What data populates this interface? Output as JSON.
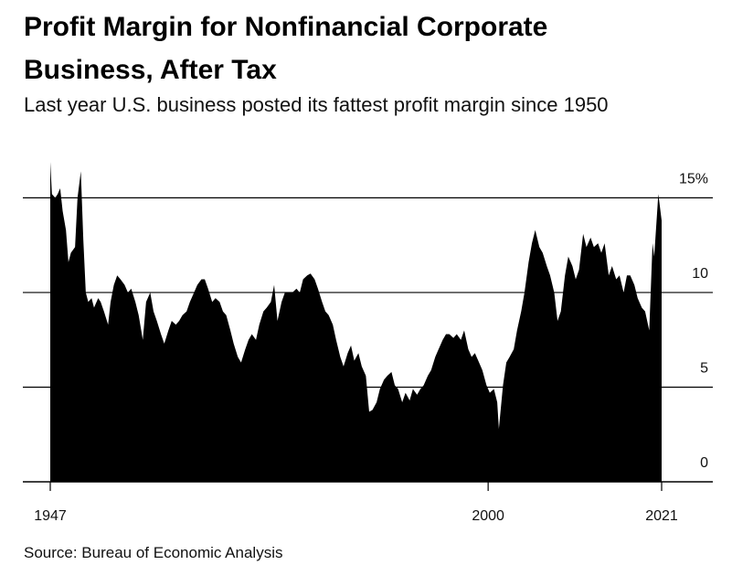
{
  "chart_data": {
    "type": "area",
    "title": "Profit Margin for Nonfinancial Corporate Business, After Tax",
    "subtitle": "Last year U.S. business posted its fattest profit margin since 1950",
    "source": "Source: Bureau of Economic Analysis",
    "color": "#000000",
    "xlim": [
      1947,
      2021
    ],
    "xticks": [
      1947,
      2000,
      2021
    ],
    "ylim": [
      0,
      17
    ],
    "yticks": [
      0,
      5,
      10,
      {
        "value": 15,
        "label": "15%"
      }
    ],
    "grid": true,
    "x": [
      1947.0,
      1947.2,
      1947.6,
      1947.9,
      1948.2,
      1948.5,
      1948.9,
      1949.2,
      1949.5,
      1950.0,
      1950.3,
      1950.7,
      1951.0,
      1951.3,
      1951.6,
      1952.0,
      1952.3,
      1952.8,
      1953.1,
      1953.5,
      1954.0,
      1954.3,
      1954.7,
      1955.1,
      1955.5,
      1956.0,
      1956.4,
      1956.8,
      1957.3,
      1957.7,
      1958.2,
      1958.6,
      1959.1,
      1959.5,
      1959.9,
      1960.4,
      1960.8,
      1961.3,
      1961.7,
      1962.2,
      1962.6,
      1963.0,
      1963.5,
      1963.9,
      1964.4,
      1964.8,
      1965.3,
      1965.7,
      1966.1,
      1966.6,
      1967.0,
      1967.5,
      1967.9,
      1968.3,
      1968.8,
      1969.2,
      1969.7,
      1970.1,
      1970.6,
      1971.0,
      1971.4,
      1971.9,
      1972.3,
      1972.8,
      1973.2,
      1973.7,
      1974.1,
      1974.5,
      1975.0,
      1975.4,
      1975.9,
      1976.3,
      1976.8,
      1977.2,
      1977.6,
      1978.1,
      1978.5,
      1979.0,
      1979.4,
      1979.9,
      1980.3,
      1980.7,
      1981.2,
      1981.6,
      1982.1,
      1982.5,
      1983.0,
      1983.4,
      1983.8,
      1984.3,
      1984.7,
      1985.2,
      1985.6,
      1986.0,
      1986.5,
      1986.9,
      1987.4,
      1987.8,
      1988.3,
      1988.7,
      1989.1,
      1989.6,
      1990.0,
      1990.5,
      1990.9,
      1991.4,
      1991.8,
      1992.2,
      1992.7,
      1993.1,
      1993.6,
      1994.0,
      1994.5,
      1994.9,
      1995.3,
      1995.8,
      1996.2,
      1996.7,
      1997.1,
      1997.6,
      1998.0,
      1998.4,
      1998.9,
      1999.3,
      1999.8,
      2000.2,
      2000.7,
      2001.1,
      2001.3,
      2001.8,
      2002.2,
      2002.6,
      2003.1,
      2003.5,
      2004.0,
      2004.4,
      2004.9,
      2005.3,
      2005.7,
      2006.2,
      2006.6,
      2007.1,
      2007.5,
      2008.0,
      2008.4,
      2008.8,
      2009.3,
      2009.7,
      2010.2,
      2010.6,
      2011.0,
      2011.5,
      2011.9,
      2012.4,
      2012.8,
      2013.3,
      2013.7,
      2014.1,
      2014.6,
      2015.0,
      2015.5,
      2015.9,
      2016.4,
      2016.8,
      2017.2,
      2017.7,
      2018.1,
      2018.6,
      2019.0,
      2019.5,
      2019.9,
      2020.1,
      2020.6,
      2021.0
    ],
    "values": [
      16.9,
      15.2,
      15,
      15.2,
      15.5,
      14.3,
      13.3,
      11.6,
      12.1,
      12.4,
      15,
      16.4,
      12.8,
      10,
      9.5,
      9.7,
      9.2,
      9.7,
      9.5,
      9,
      8.3,
      9.5,
      10.4,
      10.9,
      10.7,
      10.4,
      10,
      10.2,
      9.5,
      8.8,
      7.5,
      9.5,
      10,
      9,
      8.5,
      7.8,
      7.3,
      8,
      8.5,
      8.3,
      8.5,
      8.8,
      9,
      9.5,
      10,
      10.4,
      10.7,
      10.7,
      10.2,
      9.5,
      9.7,
      9.5,
      9,
      8.8,
      8,
      7.3,
      6.6,
      6.3,
      7,
      7.5,
      7.8,
      7.5,
      8.3,
      9,
      9.2,
      9.5,
      10.4,
      8.5,
      9.5,
      10,
      10,
      10,
      10.2,
      10,
      10.7,
      10.9,
      11,
      10.7,
      10.2,
      9.5,
      9,
      8.8,
      8.3,
      7.5,
      6.6,
      6.1,
      6.8,
      7.2,
      6.4,
      6.8,
      6.1,
      5.6,
      3.7,
      3.8,
      4.2,
      4.9,
      5.4,
      5.6,
      5.8,
      5.1,
      4.9,
      4.2,
      4.7,
      4.3,
      4.9,
      4.6,
      4.9,
      5.1,
      5.6,
      5.9,
      6.6,
      7,
      7.5,
      7.8,
      7.8,
      7.6,
      7.8,
      7.5,
      8,
      7,
      6.6,
      6.8,
      6.3,
      5.9,
      5.1,
      4.7,
      4.9,
      4.2,
      2.8,
      5.1,
      6.3,
      6.6,
      7,
      8,
      9,
      10,
      11.6,
      12.6,
      13.3,
      12.4,
      12.1,
      11.4,
      10.9,
      10,
      8.5,
      9,
      10.9,
      11.9,
      11.4,
      10.7,
      11.2,
      13.1,
      12.4,
      12.9,
      12.4,
      12.6,
      12.1,
      12.6,
      10.9,
      11.4,
      10.7,
      10.9,
      10,
      10.9,
      10.9,
      10.4,
      9.7,
      9.2,
      9,
      8,
      12.6,
      11.9,
      15.2,
      13.8
    ]
  }
}
